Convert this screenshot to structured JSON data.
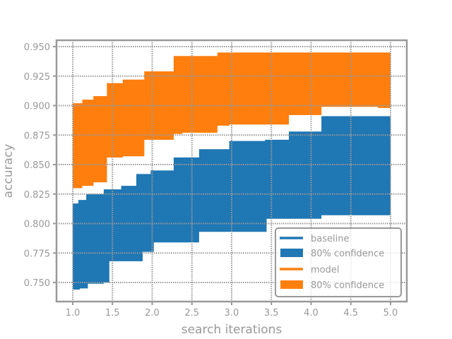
{
  "chart_data": {
    "type": "area",
    "title": "",
    "xlabel": "search iterations",
    "ylabel": "accuracy",
    "xlim": [
      0.86,
      5.1
    ],
    "ylim": [
      0.734,
      0.955
    ],
    "grid": true,
    "legend_position": "lower right",
    "x_ticks": [
      "1.0",
      "1.5",
      "2.0",
      "2.5",
      "3.0",
      "3.5",
      "4.0",
      "4.5",
      "5.0"
    ],
    "y_ticks": [
      "0.750",
      "0.775",
      "0.800",
      "0.825",
      "0.850",
      "0.875",
      "0.900",
      "0.925",
      "0.950"
    ],
    "legend": [
      {
        "label": "baseline",
        "kind": "line",
        "color": "#1f77b4"
      },
      {
        "label": "80% confidence",
        "kind": "patch",
        "color": "#1f77b4"
      },
      {
        "label": "model",
        "kind": "line",
        "color": "#ff7f0e"
      },
      {
        "label": "80% confidence",
        "kind": "patch",
        "color": "#ff7f0e"
      }
    ],
    "series": [
      {
        "name": "model 80% confidence",
        "color": "#ff7f0e",
        "step": "post",
        "x": [
          1.0,
          1.12,
          1.26,
          1.43,
          1.63,
          1.9,
          2.27,
          2.82,
          3.72,
          5.0
        ],
        "upper": [
          0.902,
          0.905,
          0.908,
          0.919,
          0.922,
          0.929,
          0.942,
          0.945,
          0.945,
          0.945
        ],
        "lower_x": [
          1.0,
          1.12,
          1.26,
          1.43,
          1.63,
          1.9,
          2.27,
          2.38,
          2.82,
          2.97,
          3.72,
          3.81,
          4.13,
          4.84,
          5.0
        ],
        "lower": [
          0.83,
          0.832,
          0.835,
          0.856,
          0.857,
          0.871,
          0.876,
          0.877,
          0.883,
          0.884,
          0.892,
          0.892,
          0.899,
          0.898,
          0.903
        ]
      },
      {
        "name": "baseline 80% confidence",
        "color": "#1f77b4",
        "step": "post",
        "upper_x": [
          1.0,
          1.07,
          1.17,
          1.39,
          1.61,
          1.8,
          1.98,
          2.27,
          2.59,
          2.97,
          3.42,
          3.72,
          4.13,
          5.0
        ],
        "upper": [
          0.817,
          0.82,
          0.825,
          0.829,
          0.832,
          0.842,
          0.845,
          0.856,
          0.863,
          0.87,
          0.871,
          0.878,
          0.891,
          0.892
        ],
        "lower_x": [
          1.0,
          1.09,
          1.19,
          1.39,
          1.46,
          1.88,
          2.02,
          2.59,
          3.44,
          4.13,
          5.0
        ],
        "lower": [
          0.744,
          0.745,
          0.749,
          0.75,
          0.768,
          0.776,
          0.784,
          0.793,
          0.804,
          0.807,
          0.808
        ]
      }
    ]
  }
}
